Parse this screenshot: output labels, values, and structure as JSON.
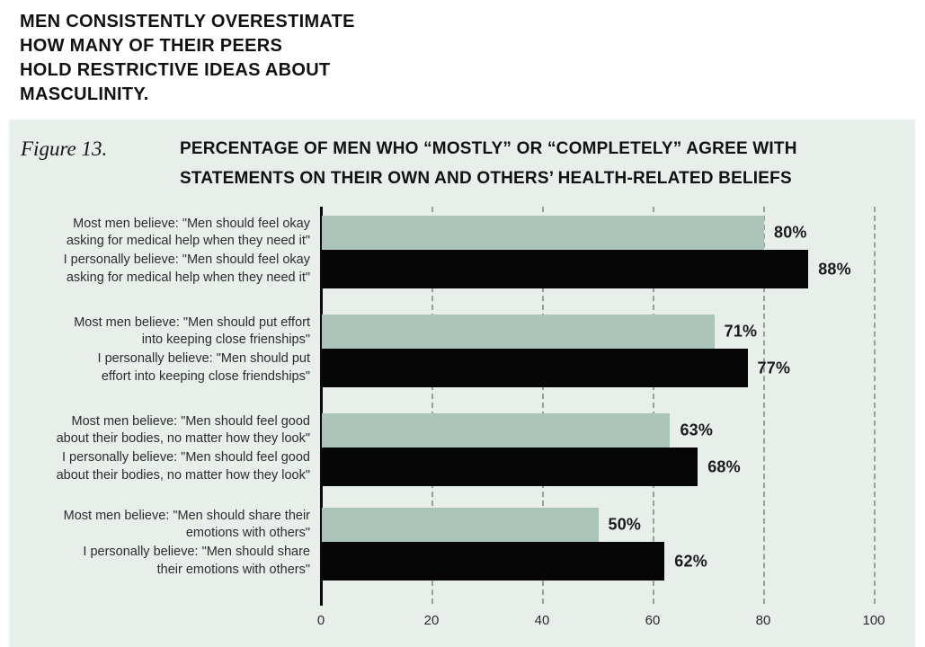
{
  "page": {
    "heading_lines": [
      "MEN CONSISTENTLY OVERESTIMATE",
      "HOW MANY OF THEIR PEERS",
      "HOLD RESTRICTIVE IDEAS ABOUT",
      "MASCULINITY."
    ]
  },
  "figure": {
    "label": "Figure 13.",
    "title_lines": [
      "PERCENTAGE OF MEN WHO “MOSTLY” OR “COMPLETELY” AGREE WITH",
      "STATEMENTS ON THEIR OWN AND OTHERS’ HEALTH-RELATED BELIEFS"
    ]
  },
  "chart_data": {
    "type": "bar",
    "orientation": "horizontal",
    "title": "PERCENTAGE OF MEN WHO “MOSTLY” OR “COMPLETELY” AGREE WITH STATEMENTS ON THEIR OWN AND OTHERS’ HEALTH-RELATED BELIEFS",
    "xlim": [
      0,
      100
    ],
    "x_ticks": [
      0,
      20,
      40,
      60,
      80,
      100
    ],
    "grid": "dashed-vertical",
    "legend_position": "none",
    "colors": {
      "panel_background": "#e8eeea",
      "most_men_bar": "#aac4b9",
      "personal_bar": "#060606",
      "gridline": "#96a09b"
    },
    "series": [
      {
        "name": "Most men believe",
        "color": "#aac4b9"
      },
      {
        "name": "I personally believe",
        "color": "#060606"
      }
    ],
    "groups": [
      {
        "bars": [
          {
            "series": 0,
            "value": 80,
            "display": "80%",
            "label_lines": [
              "Most men believe: \"Men should feel okay",
              "asking for medical help when they need it\""
            ]
          },
          {
            "series": 1,
            "value": 88,
            "display": "88%",
            "label_lines": [
              "I personally believe: \"Men should feel okay",
              "asking for medical help when they need it\""
            ]
          }
        ]
      },
      {
        "bars": [
          {
            "series": 0,
            "value": 71,
            "display": "71%",
            "label_lines": [
              "Most men believe: \"Men should put effort",
              "into keeping close frienships\""
            ]
          },
          {
            "series": 1,
            "value": 77,
            "display": "77%",
            "label_lines": [
              "I personally believe: \"Men should put",
              "effort into keeping close friendships\""
            ]
          }
        ]
      },
      {
        "bars": [
          {
            "series": 0,
            "value": 63,
            "display": "63%",
            "label_lines": [
              "Most men believe: \"Men should feel good",
              "about their bodies, no matter how they look\""
            ]
          },
          {
            "series": 1,
            "value": 68,
            "display": "68%",
            "label_lines": [
              "I personally believe: \"Men should feel good",
              "about their bodies, no matter how they look\""
            ]
          }
        ]
      },
      {
        "bars": [
          {
            "series": 0,
            "value": 50,
            "display": "50%",
            "label_lines": [
              "Most men believe: \"Men should share their",
              "emotions with others\""
            ]
          },
          {
            "series": 1,
            "value": 62,
            "display": "62%",
            "label_lines": [
              "I personally believe: \"Men should share",
              "their emotions with others\""
            ]
          }
        ]
      }
    ]
  }
}
